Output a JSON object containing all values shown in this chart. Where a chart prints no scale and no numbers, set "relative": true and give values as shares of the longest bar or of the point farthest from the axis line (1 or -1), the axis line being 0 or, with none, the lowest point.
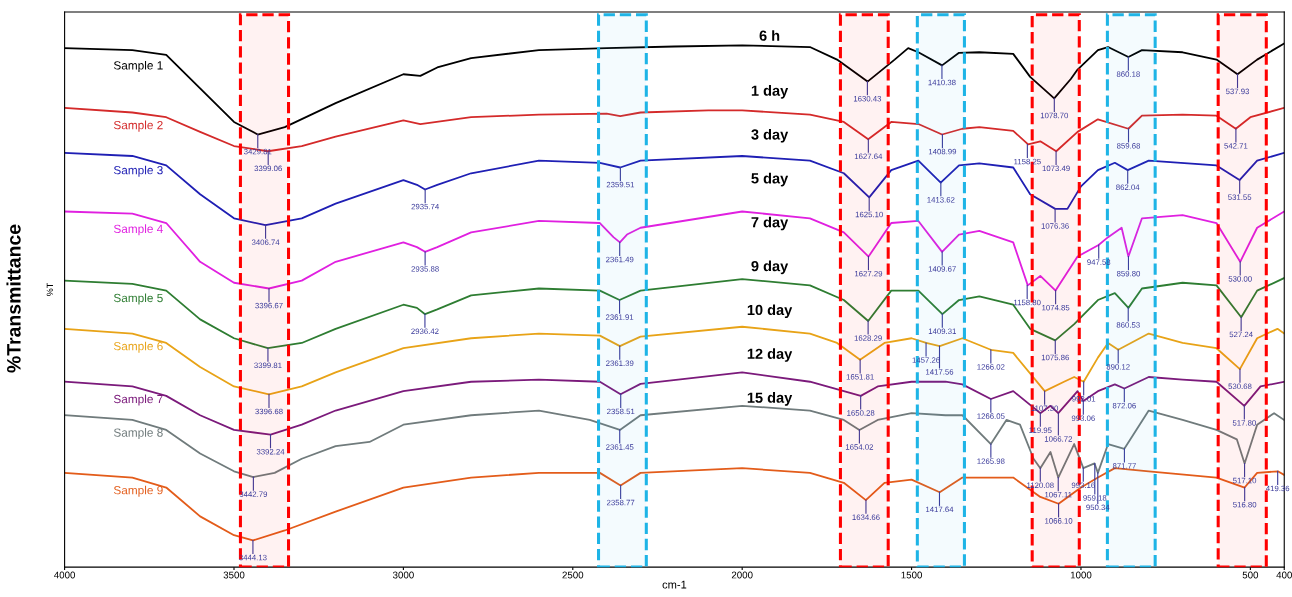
{
  "chart_data": {
    "type": "line",
    "relative": true,
    "xlabel": "cm-1",
    "ylabel": "%Transmittance",
    "xlim": [
      4000,
      400
    ],
    "xticks": [
      4000,
      3500,
      3000,
      2500,
      2000,
      1500,
      1000,
      500,
      400
    ],
    "grid": false,
    "legend": false,
    "marker": "none",
    "line_style": "solid",
    "series": [
      {
        "name": "Sample 1",
        "color": "#000000",
        "x": [
          4000,
          3800,
          3700,
          3600,
          3500,
          3430,
          3350,
          3200,
          3000,
          2950,
          2900,
          2800,
          2600,
          2400,
          2200,
          2000,
          1800,
          1720,
          1630,
          1550,
          1510,
          1480,
          1410,
          1360,
          1300,
          1200,
          1150,
          1079,
          1030,
          1010,
          950,
          920,
          860,
          820,
          700,
          600,
          538,
          480,
          400
        ],
        "values": [
          0.991,
          0.987,
          0.978,
          0.914,
          0.85,
          0.826,
          0.84,
          0.886,
          0.941,
          0.938,
          0.954,
          0.972,
          0.987,
          0.991,
          0.994,
          0.996,
          0.993,
          0.969,
          0.927,
          0.969,
          0.991,
          0.983,
          0.958,
          0.982,
          0.983,
          0.98,
          0.936,
          0.895,
          0.932,
          0.95,
          0.987,
          0.993,
          0.974,
          0.987,
          0.983,
          0.969,
          0.941,
          0.969,
          1.0
        ]
      },
      {
        "name": "Sample 2",
        "color": "#d42a2a",
        "x": [
          4000,
          3800,
          3700,
          3600,
          3500,
          3400,
          3300,
          3200,
          3000,
          2950,
          2800,
          2600,
          2400,
          2360,
          2300,
          2100,
          2000,
          1800,
          1700,
          1628,
          1560,
          1480,
          1410,
          1350,
          1300,
          1200,
          1156,
          1120,
          1073,
          1010,
          950,
          860,
          820,
          700,
          600,
          543,
          500,
          400
        ],
        "values": [
          0.877,
          0.868,
          0.859,
          0.831,
          0.804,
          0.794,
          0.804,
          0.822,
          0.853,
          0.846,
          0.859,
          0.864,
          0.866,
          0.861,
          0.868,
          0.872,
          0.872,
          0.864,
          0.85,
          0.817,
          0.85,
          0.846,
          0.826,
          0.837,
          0.84,
          0.833,
          0.807,
          0.813,
          0.794,
          0.831,
          0.855,
          0.837,
          0.862,
          0.864,
          0.862,
          0.837,
          0.859,
          0.877
        ]
      },
      {
        "name": "Sample 3",
        "color": "#1f1fb4",
        "x": [
          4000,
          3800,
          3700,
          3600,
          3500,
          3407,
          3300,
          3200,
          3000,
          2960,
          2936,
          2900,
          2800,
          2600,
          2420,
          2360,
          2300,
          2000,
          1800,
          1700,
          1625,
          1560,
          1480,
          1414,
          1360,
          1300,
          1200,
          1150,
          1076,
          1040,
          1000,
          950,
          900,
          862,
          800,
          600,
          532,
          480,
          400
        ],
        "values": [
          0.791,
          0.785,
          0.767,
          0.712,
          0.666,
          0.653,
          0.666,
          0.694,
          0.739,
          0.73,
          0.721,
          0.73,
          0.752,
          0.776,
          0.772,
          0.763,
          0.776,
          0.785,
          0.776,
          0.752,
          0.706,
          0.758,
          0.776,
          0.734,
          0.767,
          0.771,
          0.763,
          0.712,
          0.684,
          0.684,
          0.727,
          0.758,
          0.772,
          0.758,
          0.776,
          0.767,
          0.739,
          0.776,
          0.791
        ]
      },
      {
        "name": "Sample 4",
        "color": "#e020e0",
        "x": [
          4000,
          3800,
          3700,
          3600,
          3500,
          3397,
          3300,
          3200,
          3000,
          2960,
          2936,
          2900,
          2800,
          2600,
          2420,
          2380,
          2361,
          2340,
          2300,
          2000,
          1800,
          1700,
          1627,
          1560,
          1480,
          1410,
          1360,
          1300,
          1200,
          1157,
          1120,
          1075,
          1010,
          948,
          920,
          880,
          860,
          820,
          700,
          600,
          530,
          480,
          400
        ],
        "values": [
          0.679,
          0.675,
          0.657,
          0.583,
          0.543,
          0.532,
          0.547,
          0.583,
          0.62,
          0.611,
          0.602,
          0.611,
          0.639,
          0.661,
          0.657,
          0.63,
          0.62,
          0.635,
          0.648,
          0.679,
          0.666,
          0.639,
          0.593,
          0.657,
          0.661,
          0.602,
          0.635,
          0.642,
          0.62,
          0.538,
          0.556,
          0.528,
          0.593,
          0.615,
          0.63,
          0.648,
          0.593,
          0.666,
          0.672,
          0.657,
          0.583,
          0.648,
          0.679
        ]
      },
      {
        "name": "Sample 5",
        "color": "#2e7d32",
        "x": [
          4000,
          3800,
          3700,
          3600,
          3500,
          3400,
          3300,
          3200,
          3000,
          2960,
          2936,
          2900,
          2800,
          2600,
          2420,
          2362,
          2300,
          2000,
          1800,
          1700,
          1628,
          1560,
          1480,
          1409,
          1360,
          1300,
          1200,
          1150,
          1076,
          1020,
          950,
          900,
          860,
          820,
          700,
          600,
          527,
          480,
          400
        ],
        "values": [
          0.547,
          0.541,
          0.528,
          0.473,
          0.437,
          0.418,
          0.428,
          0.455,
          0.501,
          0.495,
          0.483,
          0.492,
          0.519,
          0.532,
          0.528,
          0.51,
          0.528,
          0.55,
          0.538,
          0.51,
          0.47,
          0.528,
          0.528,
          0.483,
          0.51,
          0.517,
          0.501,
          0.455,
          0.433,
          0.464,
          0.51,
          0.523,
          0.495,
          0.532,
          0.543,
          0.538,
          0.477,
          0.528,
          0.552
        ]
      },
      {
        "name": "Sample 6",
        "color": "#e8a317",
        "x": [
          4000,
          3800,
          3700,
          3600,
          3500,
          3397,
          3300,
          3200,
          3000,
          2800,
          2600,
          2420,
          2361,
          2300,
          2000,
          1800,
          1720,
          1652,
          1580,
          1500,
          1457,
          1417,
          1350,
          1266,
          1200,
          1107,
          1050,
          1020,
          992,
          950,
          920,
          890,
          800,
          700,
          600,
          531,
          480,
          420,
          400
        ],
        "values": [
          0.455,
          0.446,
          0.428,
          0.382,
          0.345,
          0.33,
          0.345,
          0.372,
          0.418,
          0.437,
          0.446,
          0.442,
          0.422,
          0.44,
          0.459,
          0.446,
          0.428,
          0.396,
          0.428,
          0.437,
          0.428,
          0.422,
          0.437,
          0.415,
          0.409,
          0.336,
          0.354,
          0.363,
          0.354,
          0.4,
          0.428,
          0.415,
          0.446,
          0.428,
          0.418,
          0.378,
          0.437,
          0.455,
          0.446
        ]
      },
      {
        "name": "Sample 7",
        "color": "#7b1a7b",
        "x": [
          4000,
          3800,
          3700,
          3600,
          3500,
          3392,
          3300,
          3200,
          3000,
          2800,
          2600,
          2420,
          2359,
          2300,
          2000,
          1800,
          1700,
          1650,
          1600,
          1500,
          1400,
          1350,
          1266,
          1200,
          1120,
          1090,
          1067,
          1010,
          993,
          950,
          900,
          872,
          800,
          700,
          600,
          518,
          470,
          400
        ],
        "values": [
          0.354,
          0.345,
          0.327,
          0.29,
          0.262,
          0.253,
          0.272,
          0.299,
          0.336,
          0.354,
          0.358,
          0.354,
          0.33,
          0.35,
          0.372,
          0.354,
          0.336,
          0.327,
          0.345,
          0.354,
          0.354,
          0.349,
          0.321,
          0.336,
          0.294,
          0.308,
          0.294,
          0.336,
          0.317,
          0.336,
          0.349,
          0.341,
          0.363,
          0.358,
          0.354,
          0.308,
          0.345,
          0.354
        ]
      },
      {
        "name": "Sample 8",
        "color": "#707b7c",
        "x": [
          4000,
          3800,
          3700,
          3600,
          3500,
          3443,
          3380,
          3300,
          3200,
          3100,
          3000,
          2800,
          2600,
          2450,
          2361,
          2300,
          2000,
          1800,
          1700,
          1654,
          1600,
          1500,
          1400,
          1350,
          1266,
          1220,
          1180,
          1140,
          1120,
          1090,
          1067,
          1020,
          993,
          960,
          950,
          920,
          872,
          800,
          700,
          600,
          540,
          517,
          480,
          430,
          400
        ],
        "values": [
          0.29,
          0.281,
          0.262,
          0.217,
          0.183,
          0.172,
          0.18,
          0.207,
          0.231,
          0.239,
          0.272,
          0.29,
          0.299,
          0.281,
          0.262,
          0.29,
          0.308,
          0.299,
          0.281,
          0.262,
          0.281,
          0.294,
          0.29,
          0.29,
          0.235,
          0.281,
          0.272,
          0.207,
          0.189,
          0.22,
          0.171,
          0.235,
          0.189,
          0.198,
          0.18,
          0.235,
          0.226,
          0.299,
          0.281,
          0.262,
          0.244,
          0.198,
          0.272,
          0.294,
          0.281
        ]
      },
      {
        "name": "Sample 9",
        "color": "#e35c1a",
        "x": [
          4000,
          3800,
          3700,
          3600,
          3500,
          3444,
          3350,
          3200,
          3000,
          2800,
          2600,
          2420,
          2359,
          2300,
          2000,
          1800,
          1700,
          1635,
          1580,
          1500,
          1417,
          1350,
          1200,
          1120,
          1066,
          1000,
          950,
          900,
          800,
          600,
          517,
          480,
          419,
          400
        ],
        "values": [
          0.18,
          0.171,
          0.152,
          0.097,
          0.061,
          0.051,
          0.07,
          0.106,
          0.152,
          0.171,
          0.18,
          0.18,
          0.156,
          0.18,
          0.189,
          0.18,
          0.161,
          0.128,
          0.161,
          0.167,
          0.143,
          0.171,
          0.171,
          0.134,
          0.121,
          0.152,
          0.171,
          0.189,
          0.183,
          0.171,
          0.152,
          0.18,
          0.183,
          0.176
        ]
      }
    ],
    "bands": [
      {
        "axis": "x",
        "from": 3481,
        "to": 3339,
        "color": "#ff0000"
      },
      {
        "axis": "x",
        "from": 2424,
        "to": 2283,
        "color": "#1eb4e6"
      },
      {
        "axis": "x",
        "from": 1710,
        "to": 1569,
        "color": "#ff0000"
      },
      {
        "axis": "x",
        "from": 1483,
        "to": 1344,
        "color": "#1eb4e6"
      },
      {
        "axis": "x",
        "from": 1144,
        "to": 1005,
        "color": "#ff0000"
      },
      {
        "axis": "x",
        "from": 922,
        "to": 781,
        "color": "#1eb4e6"
      },
      {
        "axis": "x",
        "from": 595,
        "to": 453,
        "color": "#ff0000"
      }
    ],
    "annotations": [
      "6 h",
      "1 day",
      "3 day",
      "5 day",
      "7 day",
      "9 day",
      "10 day",
      "12 day",
      "15 day",
      "%T",
      {
        "text": "3429.81",
        "x": 3429.81,
        "y": 0.826
      },
      {
        "text": "1630.43",
        "x": 1630.43,
        "y": 0.927
      },
      {
        "text": "1410.38",
        "x": 1410.38,
        "y": 0.958
      },
      {
        "text": "1078.70",
        "x": 1078.7,
        "y": 0.895
      },
      {
        "text": "860.18",
        "x": 860.18,
        "y": 0.974
      },
      {
        "text": "537.93",
        "x": 537.93,
        "y": 0.941
      },
      {
        "text": "3399.06",
        "x": 3399.06,
        "y": 0.794
      },
      {
        "text": "1627.64",
        "x": 1627.64,
        "y": 0.817
      },
      {
        "text": "1408.99",
        "x": 1408.99,
        "y": 0.826
      },
      {
        "text": "1158.25",
        "x": 1158.25,
        "y": 0.807
      },
      {
        "text": "1073.49",
        "x": 1073.49,
        "y": 0.794
      },
      {
        "text": "859.68",
        "x": 859.68,
        "y": 0.837
      },
      {
        "text": "542.71",
        "x": 542.71,
        "y": 0.837
      },
      {
        "text": "3406.74",
        "x": 3406.74,
        "y": 0.653
      },
      {
        "text": "2935.74",
        "x": 2935.74,
        "y": 0.721
      },
      {
        "text": "2359.51",
        "x": 2359.51,
        "y": 0.763
      },
      {
        "text": "1625.10",
        "x": 1625.1,
        "y": 0.706
      },
      {
        "text": "1413.62",
        "x": 1413.62,
        "y": 0.734
      },
      {
        "text": "1076.36",
        "x": 1076.36,
        "y": 0.684
      },
      {
        "text": "862.04",
        "x": 862.04,
        "y": 0.758
      },
      {
        "text": "531.55",
        "x": 531.55,
        "y": 0.739
      },
      {
        "text": "3396.67",
        "x": 3396.67,
        "y": 0.532
      },
      {
        "text": "2935.88",
        "x": 2935.88,
        "y": 0.602
      },
      {
        "text": "2361.49",
        "x": 2361.49,
        "y": 0.62
      },
      {
        "text": "1627.29",
        "x": 1627.29,
        "y": 0.593
      },
      {
        "text": "1409.67",
        "x": 1409.67,
        "y": 0.602
      },
      {
        "text": "1158.80",
        "x": 1158.8,
        "y": 0.538
      },
      {
        "text": "1074.85",
        "x": 1074.85,
        "y": 0.528
      },
      {
        "text": "947.58",
        "x": 947.58,
        "y": 0.615
      },
      {
        "text": "859.80",
        "x": 859.8,
        "y": 0.593
      },
      {
        "text": "530.00",
        "x": 530.0,
        "y": 0.583
      },
      {
        "text": "3399.81",
        "x": 3399.81,
        "y": 0.418
      },
      {
        "text": "2936.42",
        "x": 2936.42,
        "y": 0.483
      },
      {
        "text": "2361.91",
        "x": 2361.91,
        "y": 0.51
      },
      {
        "text": "1628.29",
        "x": 1628.29,
        "y": 0.47
      },
      {
        "text": "1409.31",
        "x": 1409.31,
        "y": 0.483
      },
      {
        "text": "1075.86",
        "x": 1075.86,
        "y": 0.433
      },
      {
        "text": "860.53",
        "x": 860.53,
        "y": 0.495
      },
      {
        "text": "527.24",
        "x": 527.24,
        "y": 0.477
      },
      {
        "text": "3396.68",
        "x": 3396.68,
        "y": 0.33
      },
      {
        "text": "2361.39",
        "x": 2361.39,
        "y": 0.422
      },
      {
        "text": "1651.81",
        "x": 1651.81,
        "y": 0.396
      },
      {
        "text": "1457.26",
        "x": 1457.26,
        "y": 0.428
      },
      {
        "text": "1417.56",
        "x": 1417.56,
        "y": 0.422
      },
      {
        "text": "1266.02",
        "x": 1266.02,
        "y": 0.415
      },
      {
        "text": "1107.30",
        "x": 1107.3,
        "y": 0.336
      },
      {
        "text": "992.01",
        "x": 992.01,
        "y": 0.354
      },
      {
        "text": "890.12",
        "x": 890.12,
        "y": 0.415
      },
      {
        "text": "530.68",
        "x": 530.68,
        "y": 0.378
      },
      {
        "text": "3392.24",
        "x": 3392.24,
        "y": 0.253
      },
      {
        "text": "2358.51",
        "x": 2358.51,
        "y": 0.33
      },
      {
        "text": "1650.28",
        "x": 1650.28,
        "y": 0.327
      },
      {
        "text": "1266.05",
        "x": 1266.05,
        "y": 0.321
      },
      {
        "text": "119.95",
        "x": 1119.95,
        "y": 0.294
      },
      {
        "text": "1066.72",
        "x": 1066.72,
        "y": 0.294
      },
      {
        "text": "993.06",
        "x": 993.06,
        "y": 0.317
      },
      {
        "text": "872.06",
        "x": 872.06,
        "y": 0.341
      },
      {
        "text": "517.80",
        "x": 517.8,
        "y": 0.308
      },
      {
        "text": "3442.79",
        "x": 3442.79,
        "y": 0.172
      },
      {
        "text": "2361.45",
        "x": 2361.45,
        "y": 0.262
      },
      {
        "text": "1654.02",
        "x": 1654.02,
        "y": 0.262
      },
      {
        "text": "1265.98",
        "x": 1265.98,
        "y": 0.235
      },
      {
        "text": "1120.08",
        "x": 1120.08,
        "y": 0.189
      },
      {
        "text": "1067.11",
        "x": 1067.11,
        "y": 0.171
      },
      {
        "text": "993.16",
        "x": 993.16,
        "y": 0.189
      },
      {
        "text": "959.18",
        "x": 959.18,
        "y": 0.198
      },
      {
        "text": "950.34",
        "x": 950.34,
        "y": 0.18
      },
      {
        "text": "871.77",
        "x": 871.77,
        "y": 0.226
      },
      {
        "text": "517.10",
        "x": 517.1,
        "y": 0.198
      },
      {
        "text": "3444.13",
        "x": 3444.13,
        "y": 0.051
      },
      {
        "text": "2358.77",
        "x": 2358.77,
        "y": 0.156
      },
      {
        "text": "1634.66",
        "x": 1634.66,
        "y": 0.128
      },
      {
        "text": "1417.64",
        "x": 1417.64,
        "y": 0.143
      },
      {
        "text": "1066.10",
        "x": 1066.1,
        "y": 0.121
      },
      {
        "text": "516.80",
        "x": 516.8,
        "y": 0.152
      },
      {
        "text": "419.36",
        "x": 419.36,
        "y": 0.183
      }
    ]
  }
}
